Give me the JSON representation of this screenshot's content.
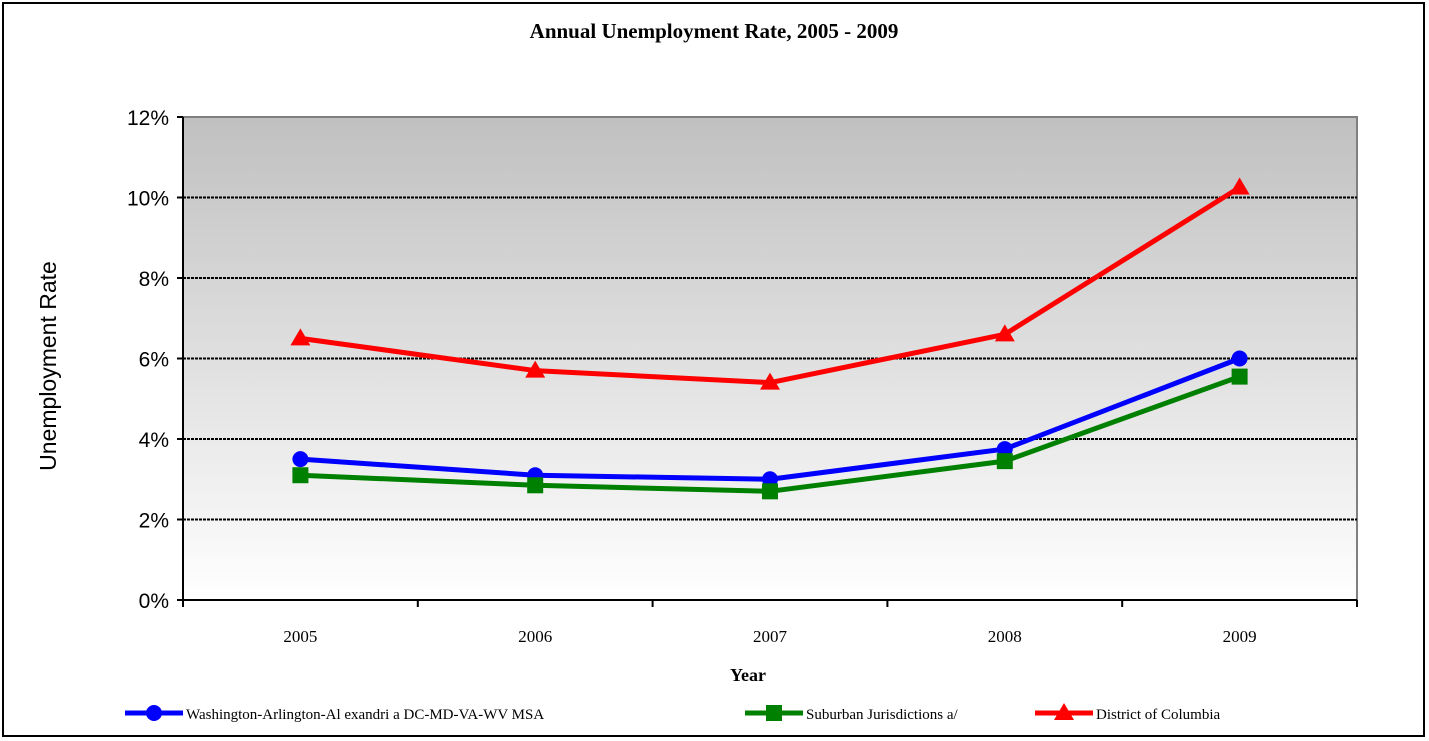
{
  "chart_data": {
    "type": "line",
    "title": "Annual Unemployment Rate, 2005 - 2009",
    "xlabel": "Year",
    "ylabel": "Unemployment Rate",
    "categories": [
      "2005",
      "2006",
      "2007",
      "2008",
      "2009"
    ],
    "yticks": [
      "0%",
      "2%",
      "4%",
      "6%",
      "8%",
      "10%",
      "12%"
    ],
    "ylim": [
      0,
      12
    ],
    "grid": true,
    "legend_position": "bottom",
    "series": [
      {
        "name": "Washington-Arlington-Al exandri a  DC-MD-VA-WV  MSA",
        "values": [
          3.5,
          3.1,
          3.0,
          3.75,
          6.0
        ],
        "color": "#0000ff",
        "marker": "circle"
      },
      {
        "name": "Suburban Jurisdictions  a/",
        "values": [
          3.1,
          2.85,
          2.7,
          3.45,
          5.55
        ],
        "color": "#008000",
        "marker": "square"
      },
      {
        "name": "District of Columbia",
        "values": [
          6.5,
          5.7,
          5.4,
          6.6,
          10.25
        ],
        "color": "#ff0000",
        "marker": "triangle"
      }
    ]
  }
}
